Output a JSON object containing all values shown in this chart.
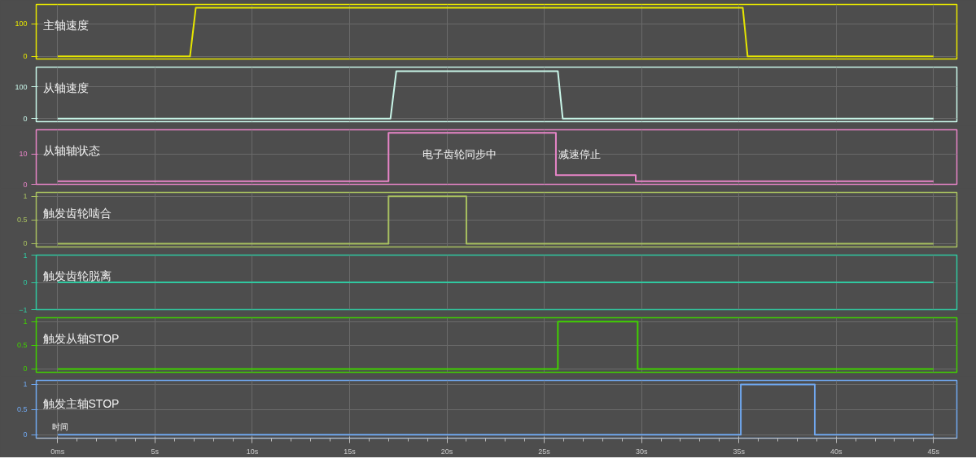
{
  "chart_data": [
    {
      "type": "line",
      "xlim": [
        -1.1,
        46.2
      ],
      "xticks": [
        0,
        5,
        10,
        15,
        20,
        25,
        30,
        35,
        40,
        45
      ],
      "ylim": [
        -8,
        160
      ],
      "yticks": [
        0,
        100
      ],
      "grid": true,
      "tick_labels": "y",
      "line_style": "solid",
      "series": [
        {
          "name": "主轴速度",
          "color": "#e6e600",
          "x": [
            0,
            6.8,
            7.1,
            35.2,
            35.45,
            45
          ],
          "values": [
            0,
            0,
            150,
            150,
            0,
            0
          ]
        }
      ]
    },
    {
      "type": "line",
      "xlim": [
        -1.1,
        46.2
      ],
      "xticks": [
        0,
        5,
        10,
        15,
        20,
        25,
        30,
        35,
        40,
        45
      ],
      "ylim": [
        -10,
        163
      ],
      "yticks": [
        0,
        100
      ],
      "grid": true,
      "tick_labels": "y",
      "line_style": "solid",
      "series": [
        {
          "name": "从轴速度",
          "color": "#c8f5e8",
          "x": [
            0,
            17.1,
            17.4,
            25.7,
            25.95,
            45
          ],
          "values": [
            0,
            0,
            150,
            150,
            0,
            0
          ]
        }
      ]
    },
    {
      "type": "line",
      "xlim": [
        -1.1,
        46.2
      ],
      "xticks": [
        0,
        5,
        10,
        15,
        20,
        25,
        30,
        35,
        40,
        45
      ],
      "ylim": [
        0,
        18
      ],
      "yticks": [
        0,
        10
      ],
      "grid": true,
      "tick_labels": "y",
      "line_style": "solid",
      "series": [
        {
          "name": "从轴轴状态",
          "color": "#e885c8",
          "x": [
            0,
            17,
            17,
            25.6,
            25.6,
            29.7,
            29.7,
            45
          ],
          "values": [
            1,
            1,
            17,
            17,
            3,
            3,
            1,
            1
          ]
        }
      ],
      "annotations": [
        "电子齿轮同步中",
        "减速停止"
      ]
    },
    {
      "type": "line",
      "xlim": [
        -1.1,
        46.2
      ],
      "xticks": [
        0,
        5,
        10,
        15,
        20,
        25,
        30,
        35,
        40,
        45
      ],
      "ylim": [
        -0.07,
        1.08
      ],
      "yticks": [
        0,
        0.5,
        1
      ],
      "grid": true,
      "tick_labels": "y",
      "line_style": "solid",
      "series": [
        {
          "name": "触发齿轮啮合",
          "color": "#a8c060",
          "x": [
            0,
            17,
            17,
            21,
            21,
            45
          ],
          "values": [
            0,
            0,
            1,
            1,
            0,
            0
          ]
        }
      ]
    },
    {
      "type": "line",
      "xlim": [
        -1.1,
        46.2
      ],
      "xticks": [
        0,
        5,
        10,
        15,
        20,
        25,
        30,
        35,
        40,
        45
      ],
      "ylim": [
        -1,
        1
      ],
      "yticks": [
        -1,
        0,
        1
      ],
      "grid": true,
      "tick_labels": "y",
      "line_style": "solid",
      "series": [
        {
          "name": "触发齿轮脱离",
          "color": "#30c8a0",
          "x": [
            0,
            45
          ],
          "values": [
            0,
            0
          ]
        }
      ]
    },
    {
      "type": "line",
      "xlim": [
        -1.1,
        46.2
      ],
      "xticks": [
        0,
        5,
        10,
        15,
        20,
        25,
        30,
        35,
        40,
        45
      ],
      "ylim": [
        -0.07,
        1.08
      ],
      "yticks": [
        0,
        0.5,
        1
      ],
      "grid": true,
      "tick_labels": "y",
      "line_style": "solid",
      "series": [
        {
          "name": "触发从轴STOP",
          "color": "#40d000",
          "x": [
            0,
            25.7,
            25.7,
            29.8,
            29.8,
            45
          ],
          "values": [
            0,
            0,
            1,
            1,
            0,
            0
          ]
        }
      ]
    },
    {
      "type": "line",
      "xlim": [
        -1.1,
        46.2
      ],
      "xticks": [
        {
          "value": 0,
          "label": "0ms"
        },
        {
          "value": 5,
          "label": "5s"
        },
        {
          "value": 10,
          "label": "10s"
        },
        {
          "value": 15,
          "label": "15s"
        },
        {
          "value": 20,
          "label": "20s"
        },
        {
          "value": 25,
          "label": "25s"
        },
        {
          "value": 30,
          "label": "30s"
        },
        {
          "value": 35,
          "label": "35s"
        },
        {
          "value": 40,
          "label": "40s"
        },
        {
          "value": 45,
          "label": "45s"
        }
      ],
      "ylim": [
        -0.07,
        1.08
      ],
      "yticks": [
        0,
        0.5,
        1
      ],
      "grid": true,
      "xlabel": "时间",
      "line_style": "solid",
      "series": [
        {
          "name": "触发主轴STOP",
          "color": "#70a8f0",
          "x": [
            0,
            35.1,
            35.1,
            38.9,
            38.9,
            45
          ],
          "values": [
            0,
            0,
            1,
            1,
            0,
            0
          ]
        }
      ]
    }
  ]
}
